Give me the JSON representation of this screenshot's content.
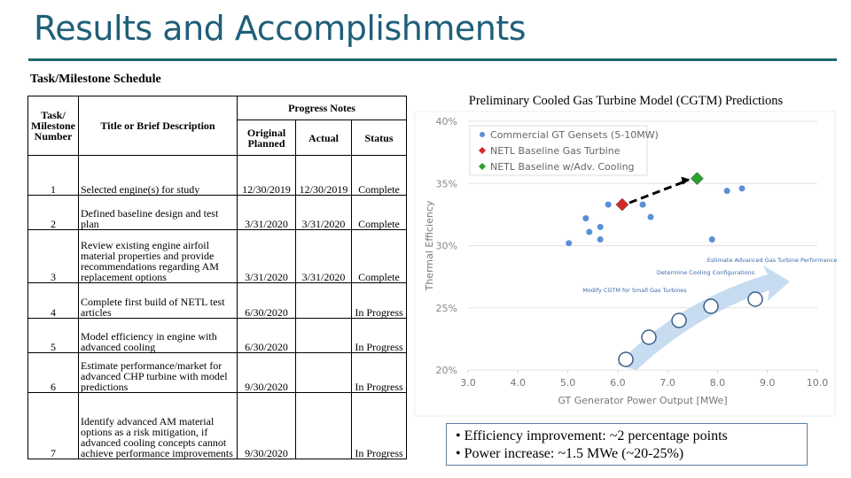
{
  "header": {
    "title": "Results and Accomplishments"
  },
  "table": {
    "caption": "Task/Milestone Schedule",
    "headers": {
      "number": "Task/ Milestone Number",
      "description": "Title or Brief Description",
      "progress": "Progress Notes",
      "planned": "Original Planned",
      "actual": "Actual",
      "status": "Status"
    },
    "rows": [
      {
        "number": "1",
        "description": "Selected engine(s) for study",
        "planned": "12/30/2019",
        "actual": "12/30/2019",
        "status": "Complete"
      },
      {
        "number": "2",
        "description": "Defined baseline design and test plan",
        "planned": "3/31/2020",
        "actual": "3/31/2020",
        "status": "Complete"
      },
      {
        "number": "3",
        "description": "Review existing engine airfoil material properties and provide recommendations regarding AM replacement options",
        "planned": "3/31/2020",
        "actual": "3/31/2020",
        "status": "Complete"
      },
      {
        "number": "4",
        "description": "Complete first build of NETL test articles",
        "planned": "6/30/2020",
        "status": "In Progress"
      },
      {
        "number": "5",
        "description": "Model efficiency in engine with advanced cooling",
        "planned": "6/30/2020",
        "status": "In Progress"
      },
      {
        "number": "6",
        "description": "Estimate performance/market for advanced CHP turbine with model predictions",
        "planned": "9/30/2020",
        "status": "In Progress"
      },
      {
        "number": "7",
        "description": "Identify advanced AM material options as a risk mitigation, if advanced cooling concepts cannot achieve performance improvements",
        "planned": "9/30/2020",
        "status": "In Progress"
      }
    ]
  },
  "chart_data": {
    "type": "scatter",
    "title": "Preliminary Cooled Gas Turbine Model (CGTM) Predictions",
    "xlabel": "GT Generator Power Output [MWe]",
    "ylabel": "Thermal Efficiency",
    "xlim": [
      3,
      10
    ],
    "ylim": [
      20,
      40
    ],
    "xticks": [
      {
        "value": 3,
        "label": "3.0"
      },
      {
        "value": 4,
        "label": "4.0"
      },
      {
        "value": 5,
        "label": "5.0"
      },
      {
        "value": 6,
        "label": "6.0"
      },
      {
        "value": 7,
        "label": "7.0"
      },
      {
        "value": 8,
        "label": "8.0"
      },
      {
        "value": 9,
        "label": "9.0"
      },
      {
        "value": 10,
        "label": "10.0"
      }
    ],
    "yticks": [
      {
        "value": 20,
        "label": "20%"
      },
      {
        "value": 25,
        "label": "25%"
      },
      {
        "value": 30,
        "label": "30%"
      },
      {
        "value": 35,
        "label": "35%"
      },
      {
        "value": 40,
        "label": "40%"
      }
    ],
    "grid": true,
    "series": [
      {
        "name": "Commercial GT Gensets (5-10MW)",
        "color": "#5b8fd6",
        "marker": "circle",
        "x": [
          5.02,
          5.36,
          5.43,
          5.65,
          5.65,
          5.81,
          6.5,
          6.66,
          7.89,
          8.19,
          8.49
        ],
        "values": [
          30.2,
          32.2,
          31.1,
          31.5,
          30.5,
          33.3,
          33.3,
          32.3,
          30.5,
          34.4,
          34.6
        ]
      },
      {
        "name": "NETL Baseline Gas Turbine",
        "color": "#d62728",
        "marker": "diamond",
        "x": [
          6.09
        ],
        "values": [
          33.3
        ]
      },
      {
        "name": "NETL Baseline w/Adv. Cooling",
        "color": "#2ca02c",
        "marker": "diamond",
        "x": [
          7.59
        ],
        "values": [
          35.4
        ]
      }
    ],
    "annotations": [
      "Modify CGTM for Small Gas Turbines",
      "Determine Cooling Configurations",
      "Estimate Advanced Gas Turbine Performance"
    ]
  },
  "bullets": [
    "Efficiency improvement: ~2 percentage points",
    "Power increase: ~1.5 MWe (~20-25%)"
  ]
}
